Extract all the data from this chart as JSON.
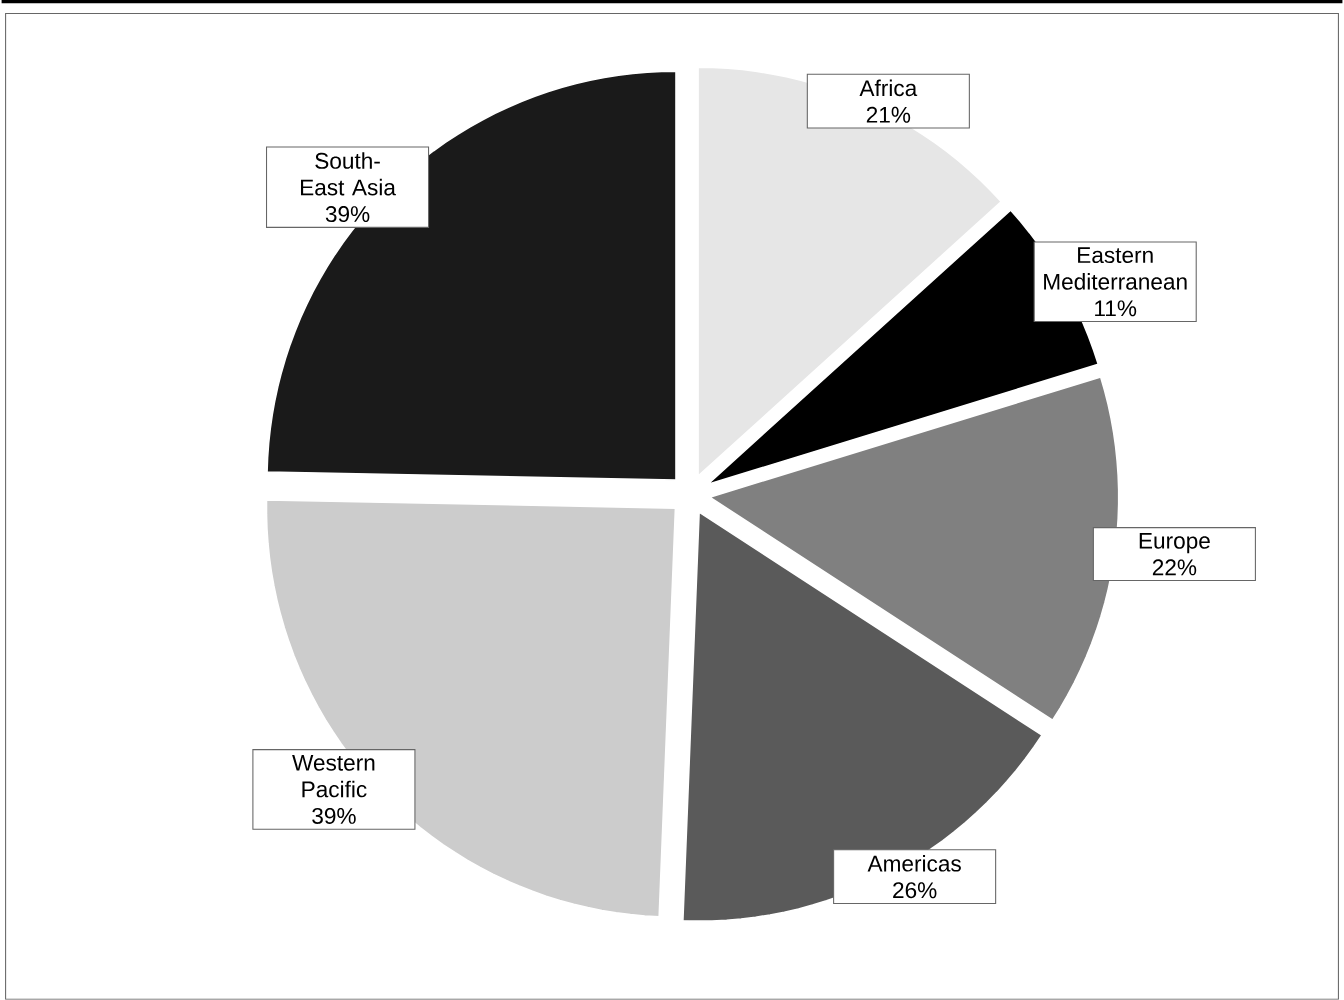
{
  "chart_data": {
    "type": "pie",
    "categories": [
      "Africa",
      "Eastern Mediterranean",
      "Europe",
      "Americas",
      "Western Pacific",
      "South-East Asia"
    ],
    "values": [
      21,
      11,
      22,
      26,
      39,
      39
    ],
    "colors": [
      "#e6e6e6",
      "#000000",
      "#808080",
      "#5a5a5a",
      "#cccccc",
      "#1a1a1a"
    ],
    "value_labels": [
      "21%",
      "11%",
      "22%",
      "26%",
      "39%",
      "39%"
    ]
  }
}
